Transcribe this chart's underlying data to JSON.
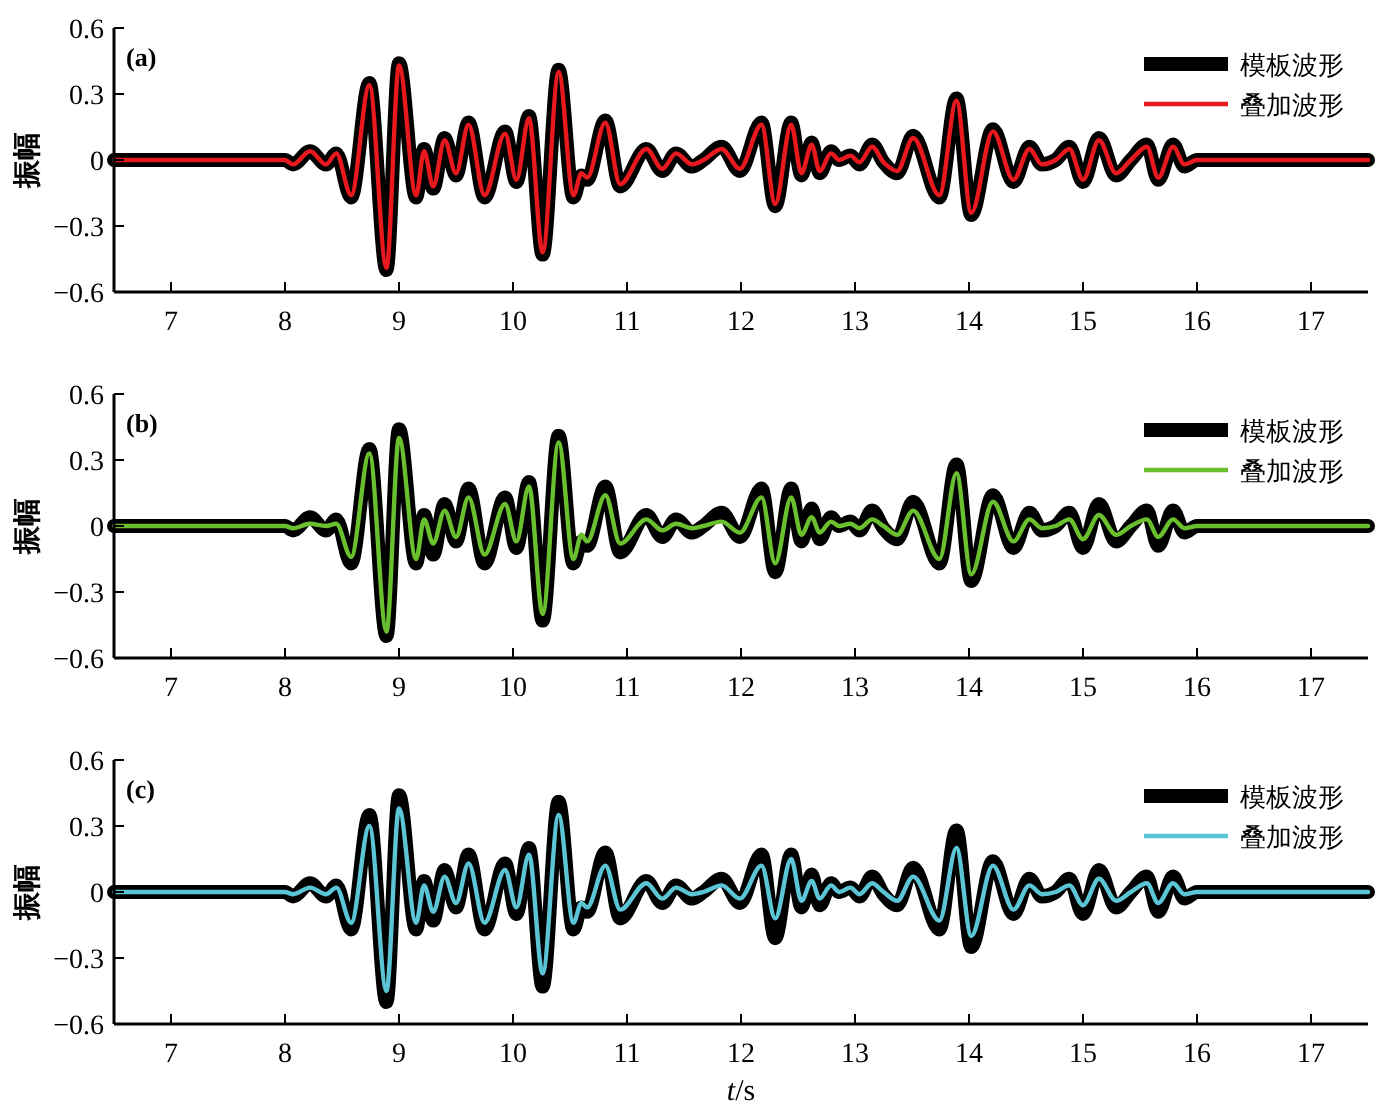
{
  "chart_data": [
    {
      "type": "line",
      "title": "(a)",
      "ylabel": "振幅",
      "xlim": [
        6.5,
        17.5
      ],
      "ylim": [
        -0.6,
        0.6
      ],
      "xticks": [
        7,
        8,
        9,
        10,
        11,
        12,
        13,
        14,
        15,
        16,
        17
      ],
      "yticks": [
        -0.6,
        -0.3,
        0,
        0.3,
        0.6
      ],
      "legend": "top right",
      "line_style": "solid",
      "x": [
        6.5,
        8.0,
        8.07,
        8.22,
        8.36,
        8.45,
        8.58,
        8.74,
        8.89,
        9.0,
        9.15,
        9.22,
        9.3,
        9.4,
        9.5,
        9.61,
        9.75,
        9.93,
        10.03,
        10.14,
        10.26,
        10.4,
        10.53,
        10.6,
        10.65,
        10.81,
        10.94,
        11.17,
        11.31,
        11.43,
        11.57,
        11.67,
        11.83,
        11.99,
        12.18,
        12.3,
        12.44,
        12.53,
        12.62,
        12.69,
        12.79,
        12.86,
        12.96,
        13.04,
        13.15,
        13.25,
        13.37,
        13.51,
        13.74,
        13.89,
        14.02,
        14.21,
        14.39,
        14.53,
        14.64,
        14.76,
        14.88,
        15.0,
        15.14,
        15.29,
        15.42,
        15.56,
        15.66,
        15.79,
        15.89,
        16.0,
        17.5
      ],
      "series": [
        {
          "name": "模板波形",
          "color": "#000000",
          "values": [
            0,
            0,
            -0.02,
            0.04,
            -0.02,
            0.03,
            -0.17,
            0.35,
            -0.5,
            0.44,
            -0.17,
            0.05,
            -0.13,
            0.1,
            -0.07,
            0.17,
            -0.17,
            0.13,
            -0.1,
            0.2,
            -0.43,
            0.41,
            -0.17,
            -0.07,
            -0.09,
            0.18,
            -0.12,
            0.05,
            -0.05,
            0.03,
            -0.03,
            0,
            0.06,
            -0.05,
            0.17,
            -0.21,
            0.17,
            -0.07,
            0.08,
            -0.06,
            0.04,
            0,
            0.02,
            -0.02,
            0.07,
            -0.01,
            -0.06,
            0.11,
            -0.17,
            0.28,
            -0.25,
            0.14,
            -0.1,
            0.06,
            -0.02,
            0,
            0.06,
            -0.1,
            0.1,
            -0.07,
            0,
            0.07,
            -0.09,
            0.07,
            -0.03,
            0,
            0
          ]
        },
        {
          "name": "叠加波形",
          "color": "#e8191e",
          "values": [
            0,
            0,
            -0.02,
            0.04,
            -0.02,
            0.03,
            -0.16,
            0.34,
            -0.49,
            0.43,
            -0.16,
            0.04,
            -0.12,
            0.09,
            -0.06,
            0.16,
            -0.16,
            0.12,
            -0.09,
            0.19,
            -0.42,
            0.4,
            -0.16,
            -0.06,
            -0.08,
            0.17,
            -0.11,
            0.05,
            -0.04,
            0.03,
            -0.02,
            0,
            0.05,
            -0.04,
            0.16,
            -0.2,
            0.16,
            -0.06,
            0.07,
            -0.05,
            0.03,
            0,
            0.02,
            -0.01,
            0.06,
            -0.01,
            -0.05,
            0.1,
            -0.16,
            0.27,
            -0.24,
            0.13,
            -0.09,
            0.05,
            -0.02,
            0,
            0.05,
            -0.09,
            0.09,
            -0.06,
            0,
            0.06,
            -0.08,
            0.06,
            -0.02,
            0,
            0
          ]
        }
      ]
    },
    {
      "type": "line",
      "title": "(b)",
      "ylabel": "振幅",
      "xlim": [
        6.5,
        17.5
      ],
      "ylim": [
        -0.6,
        0.6
      ],
      "xticks": [
        7,
        8,
        9,
        10,
        11,
        12,
        13,
        14,
        15,
        16,
        17
      ],
      "yticks": [
        -0.6,
        -0.3,
        0,
        0.3,
        0.6
      ],
      "legend": "top right",
      "line_style": "solid",
      "x": [
        6.5,
        8.0,
        8.07,
        8.22,
        8.36,
        8.45,
        8.58,
        8.74,
        8.89,
        9.0,
        9.15,
        9.22,
        9.3,
        9.4,
        9.5,
        9.61,
        9.75,
        9.93,
        10.03,
        10.14,
        10.26,
        10.4,
        10.53,
        10.6,
        10.65,
        10.81,
        10.94,
        11.17,
        11.31,
        11.43,
        11.57,
        11.67,
        11.83,
        11.99,
        12.18,
        12.3,
        12.44,
        12.53,
        12.62,
        12.69,
        12.79,
        12.86,
        12.96,
        13.04,
        13.15,
        13.25,
        13.37,
        13.51,
        13.74,
        13.89,
        14.02,
        14.21,
        14.39,
        14.53,
        14.64,
        14.76,
        14.88,
        15.0,
        15.14,
        15.29,
        15.42,
        15.56,
        15.66,
        15.79,
        15.89,
        16.0,
        17.5
      ],
      "series": [
        {
          "name": "模板波形",
          "color": "#000000",
          "values": [
            0,
            0,
            -0.02,
            0.04,
            -0.02,
            0.03,
            -0.17,
            0.35,
            -0.5,
            0.44,
            -0.17,
            0.05,
            -0.13,
            0.1,
            -0.07,
            0.17,
            -0.17,
            0.13,
            -0.1,
            0.2,
            -0.43,
            0.41,
            -0.17,
            -0.07,
            -0.09,
            0.18,
            -0.12,
            0.05,
            -0.05,
            0.03,
            -0.03,
            0,
            0.06,
            -0.05,
            0.17,
            -0.21,
            0.17,
            -0.07,
            0.08,
            -0.06,
            0.04,
            0,
            0.02,
            -0.02,
            0.07,
            -0.01,
            -0.06,
            0.11,
            -0.17,
            0.28,
            -0.25,
            0.14,
            -0.1,
            0.06,
            -0.02,
            0,
            0.06,
            -0.1,
            0.1,
            -0.07,
            0,
            0.07,
            -0.09,
            0.07,
            -0.03,
            0,
            0
          ]
        },
        {
          "name": "叠加波形",
          "color": "#6abf2e",
          "values": [
            0,
            0,
            -0.01,
            0.01,
            0,
            0.01,
            -0.14,
            0.33,
            -0.48,
            0.4,
            -0.15,
            0.03,
            -0.08,
            0.07,
            -0.05,
            0.13,
            -0.13,
            0.1,
            -0.07,
            0.18,
            -0.4,
            0.38,
            -0.15,
            -0.04,
            -0.07,
            0.14,
            -0.08,
            0.03,
            -0.02,
            0.01,
            -0.01,
            0,
            0.02,
            -0.03,
            0.13,
            -0.17,
            0.13,
            -0.04,
            0.04,
            -0.03,
            0.02,
            0,
            0.01,
            -0.01,
            0.03,
            0,
            -0.04,
            0.07,
            -0.15,
            0.24,
            -0.22,
            0.11,
            -0.07,
            0.03,
            -0.01,
            0,
            0.03,
            -0.06,
            0.05,
            -0.04,
            0,
            0.03,
            -0.05,
            0.03,
            -0.01,
            0,
            0
          ]
        }
      ]
    },
    {
      "type": "line",
      "title": "(c)",
      "ylabel": "振幅",
      "xlabel": "*t*/s",
      "xlim": [
        6.5,
        17.5
      ],
      "ylim": [
        -0.6,
        0.6
      ],
      "xticks": [
        7,
        8,
        9,
        10,
        11,
        12,
        13,
        14,
        15,
        16,
        17
      ],
      "yticks": [
        -0.6,
        -0.3,
        0,
        0.3,
        0.6
      ],
      "legend": "top right",
      "line_style": "solid",
      "x": [
        6.5,
        8.0,
        8.07,
        8.22,
        8.36,
        8.45,
        8.58,
        8.74,
        8.89,
        9.0,
        9.15,
        9.22,
        9.3,
        9.4,
        9.5,
        9.61,
        9.75,
        9.93,
        10.03,
        10.14,
        10.26,
        10.4,
        10.53,
        10.6,
        10.65,
        10.81,
        10.94,
        11.17,
        11.31,
        11.43,
        11.57,
        11.67,
        11.83,
        11.99,
        12.18,
        12.3,
        12.44,
        12.53,
        12.62,
        12.69,
        12.79,
        12.86,
        12.96,
        13.04,
        13.15,
        13.25,
        13.37,
        13.51,
        13.74,
        13.89,
        14.02,
        14.21,
        14.39,
        14.53,
        14.64,
        14.76,
        14.88,
        15.0,
        15.14,
        15.29,
        15.42,
        15.56,
        15.66,
        15.79,
        15.89,
        16.0,
        17.5
      ],
      "series": [
        {
          "name": "模板波形",
          "color": "#000000",
          "values": [
            0,
            0,
            -0.02,
            0.04,
            -0.02,
            0.03,
            -0.17,
            0.35,
            -0.5,
            0.44,
            -0.17,
            0.05,
            -0.13,
            0.1,
            -0.07,
            0.17,
            -0.17,
            0.13,
            -0.1,
            0.2,
            -0.43,
            0.41,
            -0.17,
            -0.07,
            -0.09,
            0.18,
            -0.12,
            0.05,
            -0.05,
            0.03,
            -0.03,
            0,
            0.06,
            -0.05,
            0.17,
            -0.21,
            0.17,
            -0.07,
            0.08,
            -0.06,
            0.04,
            0,
            0.02,
            -0.02,
            0.07,
            -0.01,
            -0.06,
            0.11,
            -0.17,
            0.28,
            -0.25,
            0.14,
            -0.1,
            0.06,
            -0.02,
            0,
            0.06,
            -0.1,
            0.1,
            -0.07,
            0,
            0.07,
            -0.09,
            0.07,
            -0.03,
            0,
            0
          ]
        },
        {
          "name": "叠加波形",
          "color": "#5bc5d6",
          "values": [
            0,
            0,
            -0.01,
            0.02,
            -0.01,
            0.02,
            -0.14,
            0.3,
            -0.45,
            0.38,
            -0.14,
            0.03,
            -0.09,
            0.07,
            -0.05,
            0.13,
            -0.14,
            0.1,
            -0.07,
            0.17,
            -0.37,
            0.35,
            -0.14,
            -0.05,
            -0.07,
            0.12,
            -0.08,
            0.04,
            -0.03,
            0.02,
            -0.01,
            0,
            0.03,
            -0.03,
            0.12,
            -0.12,
            0.15,
            -0.04,
            0.05,
            -0.03,
            0.03,
            0,
            0.02,
            -0.01,
            0.04,
            0,
            -0.04,
            0.07,
            -0.13,
            0.2,
            -0.2,
            0.12,
            -0.08,
            0.03,
            -0.01,
            0,
            0.03,
            -0.06,
            0.06,
            -0.04,
            0,
            0.04,
            -0.05,
            0.04,
            -0.01,
            0,
            0
          ]
        }
      ]
    }
  ]
}
